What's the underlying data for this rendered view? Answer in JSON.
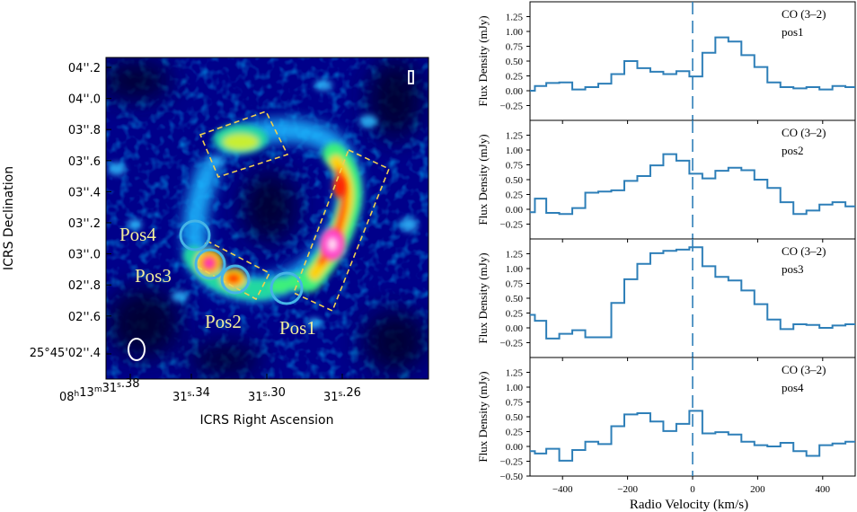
{
  "map": {
    "xlabel": "ICRS Right Ascension",
    "ylabel": "ICRS Declination",
    "dec_ticks": [
      "04''.2",
      "04''.0",
      "03''.8",
      "03''.6",
      "03''.4",
      "03''.2",
      "03''.0",
      "02''.8",
      "02''.6"
    ],
    "dec_first_label": "25°45'02''.4",
    "ra_first": {
      "h": "08",
      "hs": "h",
      "m": "13",
      "ms": "m",
      "s": "31",
      "ss": "s",
      "frac": ".38"
    },
    "ra_ticks": [
      {
        "s": "31",
        "ss": "s",
        "frac": ".34"
      },
      {
        "s": "31",
        "ss": "s",
        "frac": ".30"
      },
      {
        "s": "31",
        "ss": "s",
        "frac": ".26"
      }
    ],
    "position_labels": [
      "Pos4",
      "Pos3",
      "Pos2",
      "Pos1"
    ],
    "colors": {
      "circle": "#46b4e6",
      "box": "#f0d050",
      "label": "#f2ee9a"
    }
  },
  "chart_data": {
    "type": "line",
    "drawstyle": "steps-mid",
    "xlabel": "Radio Velocity (km/s)",
    "ylabel": "Flux Density (mJy)",
    "xlim": [
      -500,
      500
    ],
    "ylim": [
      -0.5,
      1.5
    ],
    "x_ticks": [
      "−400",
      "−200",
      "0",
      "200",
      "400"
    ],
    "y_ticks": [
      "−0.25",
      "0.00",
      "0.25",
      "0.50",
      "0.75",
      "1.00",
      "1.25"
    ],
    "bottom_extra_tick": "−0.50",
    "line_color": "#2e7fb8",
    "velocity_marker": 0,
    "panels": [
      {
        "title": "CO (3–2)",
        "name": "pos1",
        "velocity": [
          -500,
          -470,
          -430,
          -390,
          -350,
          -310,
          -270,
          -230,
          -190,
          -150,
          -110,
          -70,
          -30,
          10,
          50,
          90,
          130,
          170,
          210,
          250,
          290,
          330,
          370,
          410,
          450,
          490
        ],
        "flux": [
          0.0,
          0.08,
          0.13,
          0.14,
          0.02,
          0.06,
          0.12,
          0.28,
          0.5,
          0.38,
          0.32,
          0.28,
          0.33,
          0.24,
          0.64,
          0.9,
          0.83,
          0.6,
          0.4,
          0.14,
          0.06,
          0.04,
          0.06,
          0.02,
          0.08,
          0.06
        ]
      },
      {
        "title": "CO (3–2)",
        "name": "pos2",
        "velocity": [
          -500,
          -470,
          -430,
          -390,
          -350,
          -310,
          -270,
          -230,
          -190,
          -150,
          -110,
          -70,
          -30,
          10,
          50,
          90,
          130,
          170,
          210,
          250,
          290,
          330,
          370,
          410,
          450,
          490
        ],
        "flux": [
          -0.05,
          0.18,
          -0.06,
          -0.08,
          0.02,
          0.28,
          0.3,
          0.32,
          0.48,
          0.56,
          0.74,
          0.93,
          0.82,
          0.6,
          0.52,
          0.65,
          0.7,
          0.66,
          0.5,
          0.36,
          0.12,
          -0.08,
          -0.02,
          0.08,
          0.12,
          0.05
        ]
      },
      {
        "title": "CO (3–2)",
        "name": "pos3",
        "velocity": [
          -500,
          -470,
          -430,
          -390,
          -350,
          -310,
          -270,
          -230,
          -190,
          -150,
          -110,
          -70,
          -30,
          10,
          50,
          90,
          130,
          170,
          210,
          250,
          290,
          330,
          370,
          410,
          450,
          490
        ],
        "flux": [
          0.22,
          0.12,
          -0.18,
          -0.1,
          -0.04,
          -0.16,
          -0.16,
          0.42,
          0.82,
          1.08,
          1.26,
          1.3,
          1.32,
          1.36,
          1.04,
          0.86,
          0.8,
          0.63,
          0.4,
          0.14,
          -0.02,
          0.06,
          0.05,
          0.0,
          0.04,
          0.06
        ]
      },
      {
        "title": "CO (3–2)",
        "name": "pos4",
        "velocity": [
          -500,
          -470,
          -430,
          -390,
          -350,
          -310,
          -270,
          -230,
          -190,
          -150,
          -110,
          -70,
          -30,
          10,
          50,
          90,
          130,
          170,
          210,
          250,
          290,
          330,
          370,
          410,
          450,
          490
        ],
        "flux": [
          -0.08,
          -0.12,
          -0.04,
          -0.24,
          -0.06,
          0.08,
          0.04,
          0.34,
          0.54,
          0.56,
          0.42,
          0.26,
          0.38,
          0.6,
          0.22,
          0.24,
          0.2,
          0.08,
          0.02,
          0.0,
          0.06,
          -0.08,
          -0.16,
          0.02,
          0.05,
          0.08
        ]
      }
    ]
  }
}
